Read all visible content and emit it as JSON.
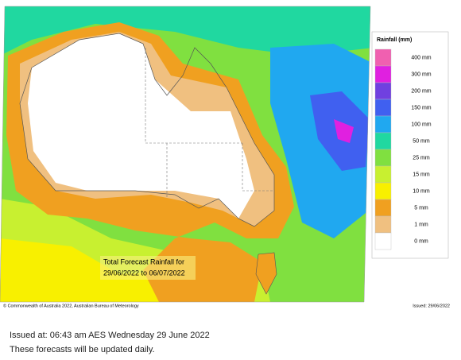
{
  "map": {
    "caption": [
      "Total Forecast Rainfall for",
      "29/06/2022 to 06/07/2022"
    ],
    "legend": {
      "title": "Rainfall (mm)",
      "items": [
        {
          "label": "400 mm",
          "color": "#f060b0"
        },
        {
          "label": "300 mm",
          "color": "#e020e0"
        },
        {
          "label": "200 mm",
          "color": "#7040e0"
        },
        {
          "label": "150 mm",
          "color": "#4060f0"
        },
        {
          "label": "100 mm",
          "color": "#20a8f0"
        },
        {
          "label": "50 mm",
          "color": "#20d8a0"
        },
        {
          "label": "25 mm",
          "color": "#80e040"
        },
        {
          "label": "15 mm",
          "color": "#c8f030"
        },
        {
          "label": "10 mm",
          "color": "#f8f000"
        },
        {
          "label": "5 mm",
          "color": "#f0a020"
        },
        {
          "label": "1 mm",
          "color": "#f0c080"
        },
        {
          "label": "0 mm",
          "color": "#ffffff"
        }
      ]
    },
    "copyright": "© Commonwealth of Australia 2022, Australian Bureau of Meteorology",
    "issued": "Issued: 29/06/2022"
  },
  "footer": {
    "issued_at": "Issued at: 06:43 am AES Wednesday 29 June 2022",
    "note": "These forecasts will be updated daily."
  }
}
